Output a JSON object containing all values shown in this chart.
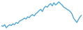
{
  "values": [
    38,
    36,
    40,
    33,
    37,
    40,
    38,
    42,
    40,
    45,
    43,
    48,
    50,
    52,
    55,
    53,
    58,
    56,
    61,
    63,
    60,
    65,
    68,
    72,
    75,
    70,
    78,
    82,
    80,
    85,
    88,
    83,
    90,
    85,
    88,
    92,
    88,
    85,
    80,
    78,
    75,
    73,
    70,
    65,
    55,
    50,
    45,
    52,
    58,
    62
  ],
  "line_color": "#4da6e0",
  "background_color": "#ffffff",
  "linewidth": 1.0
}
